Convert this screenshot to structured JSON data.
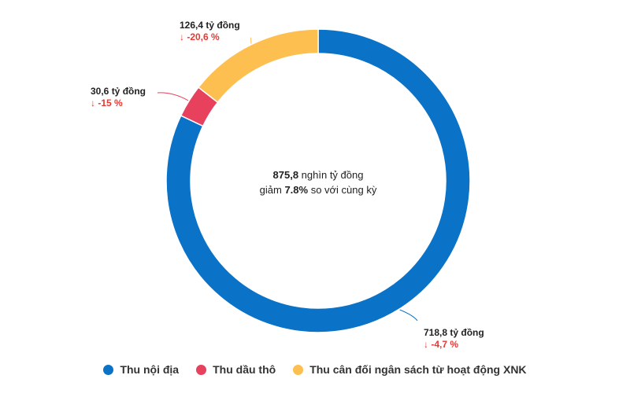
{
  "chart_data": {
    "type": "pie",
    "variant": "donut",
    "center": {
      "total_value": "875,8",
      "total_unit": "nghìn tỷ đồng",
      "line2_prefix": "giảm",
      "line2_value": "7.8%",
      "line2_suffix": "so với cùng kỳ"
    },
    "slices": [
      {
        "name": "Thu nội địa",
        "value": 718.8,
        "label": "718,8 tỷ đồng",
        "change": "↓ -4,7 %",
        "color": "#0a72c7"
      },
      {
        "name": "Thu dầu thô",
        "value": 30.6,
        "label": "30,6 tỷ đồng",
        "change": "↓ -15 %",
        "color": "#e8415e"
      },
      {
        "name": "Thu cân đối ngân sách từ hoạt động XNK",
        "value": 126.4,
        "label": "126,4 tỷ đồng",
        "change": "↓ -20,6 %",
        "color": "#fdbf4f"
      }
    ],
    "change_color": "#e53935",
    "legend_position": "bottom"
  }
}
